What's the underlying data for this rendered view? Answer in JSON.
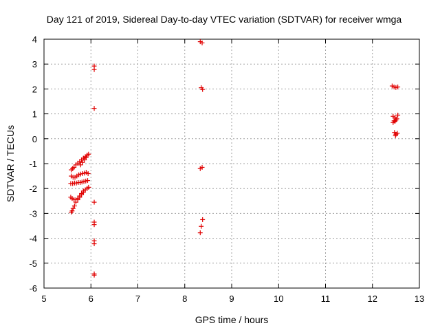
{
  "chart_data": {
    "type": "scatter",
    "title": "Day 121 of 2019, Sidereal Day-to-day VTEC variation (SDTVAR) for receiver wmga",
    "xlabel": "GPS time / hours",
    "ylabel": "SDTVAR / TECUs",
    "xlim": [
      5,
      13
    ],
    "ylim": [
      -6,
      4
    ],
    "xticks": [
      "5",
      "6",
      "7",
      "8",
      "9",
      "10",
      "11",
      "12",
      "13"
    ],
    "yticks": [
      "-6",
      "-5",
      "-4",
      "-3",
      "-2",
      "-1",
      "0",
      "1",
      "2",
      "3",
      "4"
    ],
    "grid": true,
    "marker": "plus",
    "marker_color": "#e00000",
    "series": [
      {
        "name": "SDTVAR",
        "points": [
          [
            5.58,
            -2.95
          ],
          [
            5.6,
            -2.9
          ],
          [
            5.62,
            -2.8
          ],
          [
            5.65,
            -2.7
          ],
          [
            5.68,
            -2.55
          ],
          [
            5.72,
            -2.45
          ],
          [
            5.76,
            -2.35
          ],
          [
            5.8,
            -2.25
          ],
          [
            5.84,
            -2.15
          ],
          [
            5.88,
            -2.05
          ],
          [
            5.92,
            -2.0
          ],
          [
            5.95,
            -1.95
          ],
          [
            5.57,
            -2.35
          ],
          [
            5.6,
            -2.4
          ],
          [
            5.64,
            -2.45
          ],
          [
            5.68,
            -2.45
          ],
          [
            5.72,
            -2.4
          ],
          [
            5.76,
            -2.3
          ],
          [
            5.8,
            -2.2
          ],
          [
            5.84,
            -2.1
          ],
          [
            5.57,
            -1.8
          ],
          [
            5.61,
            -1.8
          ],
          [
            5.65,
            -1.78
          ],
          [
            5.69,
            -1.78
          ],
          [
            5.73,
            -1.76
          ],
          [
            5.77,
            -1.76
          ],
          [
            5.81,
            -1.74
          ],
          [
            5.85,
            -1.72
          ],
          [
            5.89,
            -1.7
          ],
          [
            5.93,
            -1.68
          ],
          [
            5.58,
            -1.5
          ],
          [
            5.62,
            -1.55
          ],
          [
            5.66,
            -1.55
          ],
          [
            5.7,
            -1.5
          ],
          [
            5.74,
            -1.45
          ],
          [
            5.78,
            -1.42
          ],
          [
            5.82,
            -1.4
          ],
          [
            5.86,
            -1.38
          ],
          [
            5.9,
            -1.35
          ],
          [
            5.94,
            -1.4
          ],
          [
            5.58,
            -1.25
          ],
          [
            5.61,
            -1.2
          ],
          [
            5.64,
            -1.15
          ],
          [
            5.68,
            -1.05
          ],
          [
            5.72,
            -0.98
          ],
          [
            5.76,
            -0.92
          ],
          [
            5.8,
            -0.85
          ],
          [
            5.84,
            -0.78
          ],
          [
            5.88,
            -0.72
          ],
          [
            5.92,
            -0.66
          ],
          [
            5.95,
            -0.62
          ],
          [
            5.78,
            -1.05
          ],
          [
            5.82,
            -0.95
          ],
          [
            5.86,
            -0.85
          ],
          [
            5.9,
            -0.75
          ],
          [
            6.07,
            2.92
          ],
          [
            6.07,
            2.78
          ],
          [
            6.07,
            1.22
          ],
          [
            6.07,
            -2.55
          ],
          [
            6.07,
            -3.35
          ],
          [
            6.07,
            -3.45
          ],
          [
            6.07,
            -4.1
          ],
          [
            6.07,
            -4.22
          ],
          [
            6.07,
            -5.43
          ],
          [
            6.07,
            -5.48
          ],
          [
            8.33,
            3.9
          ],
          [
            8.37,
            3.85
          ],
          [
            8.35,
            2.05
          ],
          [
            8.38,
            1.98
          ],
          [
            8.33,
            -1.2
          ],
          [
            8.37,
            -1.15
          ],
          [
            8.38,
            -3.25
          ],
          [
            8.35,
            -3.52
          ],
          [
            8.33,
            -3.78
          ],
          [
            12.42,
            2.12
          ],
          [
            12.46,
            2.08
          ],
          [
            12.5,
            2.06
          ],
          [
            12.54,
            2.08
          ],
          [
            12.44,
            0.9
          ],
          [
            12.48,
            0.85
          ],
          [
            12.52,
            0.8
          ],
          [
            12.46,
            0.72
          ],
          [
            12.5,
            0.75
          ],
          [
            12.54,
            0.95
          ],
          [
            12.44,
            0.65
          ],
          [
            12.48,
            0.7
          ],
          [
            12.47,
            0.25
          ],
          [
            12.5,
            0.18
          ],
          [
            12.53,
            0.22
          ],
          [
            12.49,
            0.12
          ]
        ]
      }
    ]
  }
}
